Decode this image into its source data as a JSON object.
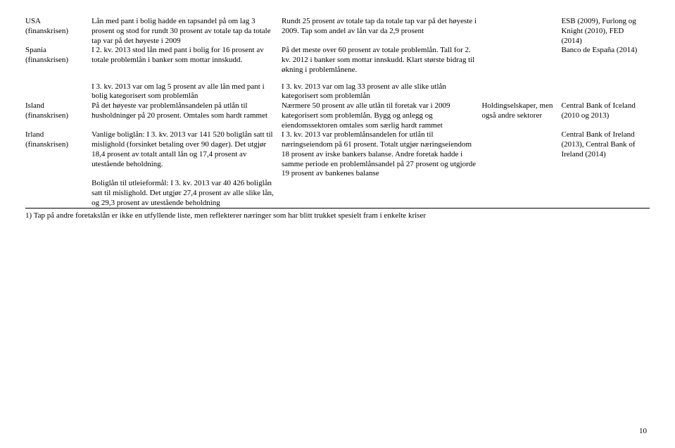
{
  "rows": [
    {
      "country": "USA",
      "crisis": "(finanskrisen)",
      "col2": "Lån med pant i bolig hadde en tapsandel på om lag 3 prosent og stod for rundt 30 prosent av totale tap da totale tap var på det høyeste i 2009",
      "col3": "Rundt 25 prosent av totale tap da totale tap var på det høyeste i 2009. Tap som andel av lån var da 2,9 prosent",
      "col4": " ",
      "col5": "ESB (2009), Furlong og Knight (2010), FED (2014)"
    },
    {
      "country": "Spania",
      "crisis": "(finanskrisen)",
      "col2": "I 2. kv. 2013 stod lån med pant i bolig for 16 prosent av totale problemlån i banker som mottar innskudd.",
      "col3": "På det meste over 60 prosent av totale problemlån. Tall for 2. kv. 2012 i banker som mottar innskudd. Klart største bidrag til økning i problemlånene.",
      "col4": " ",
      "col5": "Banco de España (2014)"
    },
    {
      "country": " ",
      "crisis": " ",
      "col2": "I 3. kv. 2013 var om lag 5 prosent av alle lån med pant i bolig kategorisert som problemlån",
      "col3": "I 3. kv. 2013 var om lag 33 prosent av alle slike utlån kategorisert som problemlån",
      "col4": " ",
      "col5": " "
    },
    {
      "country": "Island",
      "crisis": "(finanskrisen)",
      "col2": "På det høyeste var problemlånsandelen på utlån til husholdninger på 20 prosent. Omtales som hardt rammet",
      "col3": "Nærmere 50 prosent av alle utlån til foretak var i 2009 kategorisert som problemlån. Bygg og anlegg og eiendomssektoren omtales som særlig hardt rammet",
      "col4": "Holdingselskaper, men også andre sektorer",
      "col5": "Central Bank of Iceland (2010 og 2013)"
    },
    {
      "country": "Irland",
      "crisis": "(finanskrisen)",
      "col2": "Vanlige boliglån: I 3. kv. 2013 var 141 520 boliglån satt til mislighold (forsinket betaling over 90 dager). Det utgjør 18,4 prosent av totalt antall lån og 17,4 prosent av utestående beholdning.\n\nBoliglån til utleieformål: I 3. kv. 2013 var 40 426 boliglån satt til mislighold. Det utgjør 27,4 prosent av alle slike lån, og 29,3 prosent av utestående beholdning",
      "col3": "I 3. kv. 2013 var problemlånsandelen for utlån til næringseiendom på 61 prosent. Totalt utgjør næringseiendom 18 prosent av irske bankers balanse. Andre foretak hadde i samme periode en problemlånsandel på 27 prosent og utgjorde 19 prosent av bankenes balanse",
      "col4": " ",
      "col5": "Central Bank of Ireland (2013), Central Bank of Ireland (2014)"
    }
  ],
  "footnote": "1) Tap på andre foretakslån er ikke en utfyllende liste, men reflekterer næringer som har blitt trukket spesielt fram i enkelte kriser",
  "pagenum": "10",
  "gap_after": [
    1
  ],
  "multiline_col2": [
    4
  ]
}
